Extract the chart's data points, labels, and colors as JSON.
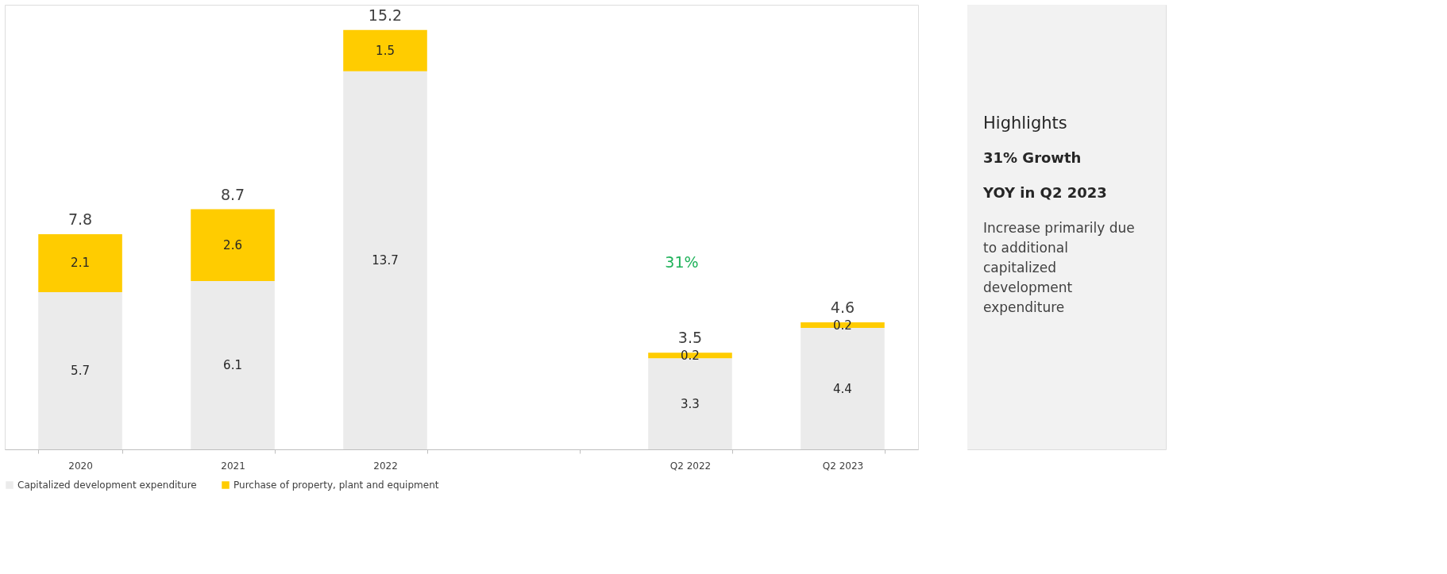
{
  "chart_data": [
    {
      "type": "bar",
      "stacked": true,
      "data_labels": true,
      "legend": "bottom",
      "tick_labels": "x",
      "categories": [
        "2020",
        "2021",
        "2022",
        null,
        "Q2 2022",
        "Q2 2023"
      ],
      "series": [
        {
          "name": "Capitalized development expenditure",
          "color": "#ebebeb",
          "values": [
            5.7,
            6.1,
            13.7,
            null,
            3.3,
            4.4
          ]
        },
        {
          "name": "Purchase of property, plant and equipment",
          "color": "#ffcc00",
          "values": [
            2.1,
            2.6,
            1.5,
            null,
            0.2,
            0.2
          ]
        }
      ],
      "totals": [
        "7.8",
        "8.7",
        "15.2",
        null,
        "3.5",
        "4.6"
      ],
      "annotations": [
        "31%"
      ]
    },
    {
      "type": "other",
      "title": "Highlights",
      "annotations": [
        "31% Growth",
        "YOY in Q2 2023",
        "Increase primarily due",
        "to additional",
        "capitalized",
        "development",
        "expenditure"
      ]
    }
  ]
}
